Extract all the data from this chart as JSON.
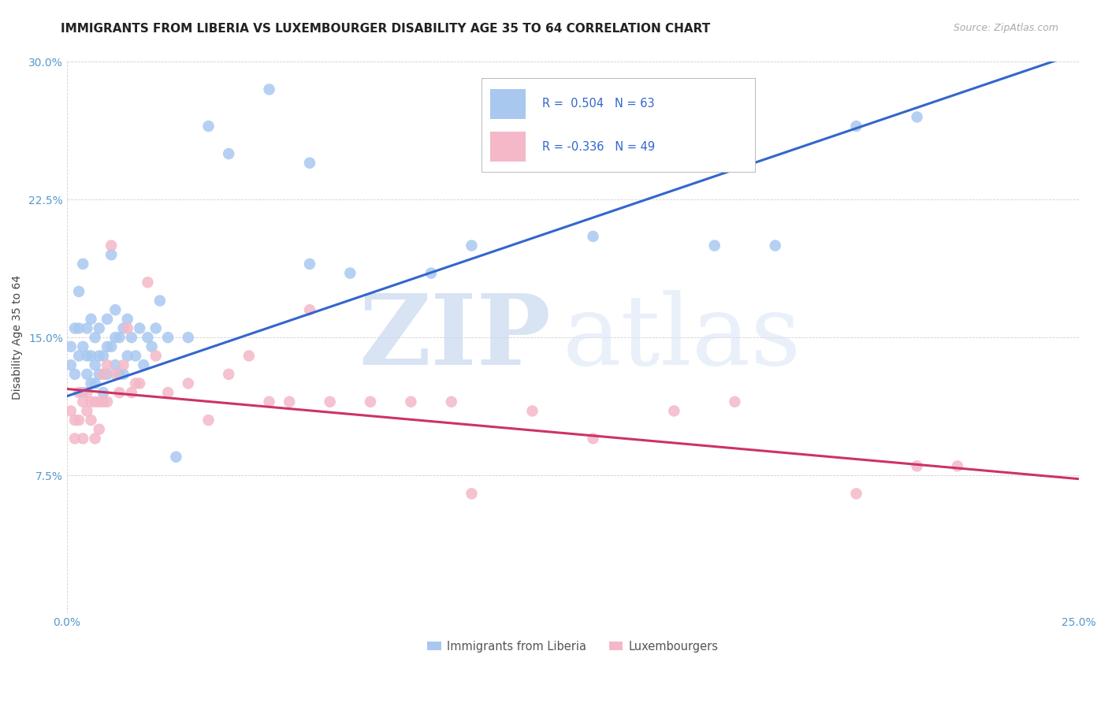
{
  "title": "IMMIGRANTS FROM LIBERIA VS LUXEMBOURGER DISABILITY AGE 35 TO 64 CORRELATION CHART",
  "source_text": "Source: ZipAtlas.com",
  "ylabel": "Disability Age 35 to 64",
  "xlim": [
    0.0,
    0.25
  ],
  "ylim": [
    0.0,
    0.3
  ],
  "ytick_labels": [
    "7.5%",
    "15.0%",
    "22.5%",
    "30.0%"
  ],
  "ytick_values": [
    0.075,
    0.15,
    0.225,
    0.3
  ],
  "xtick_values": [
    0.0,
    0.25
  ],
  "xtick_labels": [
    "0.0%",
    "25.0%"
  ],
  "grid_color": "#d0d0d0",
  "background_color": "#ffffff",
  "blue_color": "#a8c8f0",
  "pink_color": "#f4b8c8",
  "blue_line_color": "#3366cc",
  "pink_line_color": "#cc3366",
  "blue_line_x0": 0.0,
  "blue_line_y0": 0.118,
  "blue_line_x1": 0.25,
  "blue_line_y1": 0.305,
  "pink_line_x0": 0.0,
  "pink_line_y0": 0.122,
  "pink_line_x1": 0.25,
  "pink_line_y1": 0.073,
  "legend_text_blue": "R =  0.504   N = 63",
  "legend_text_pink": "R = -0.336   N = 49",
  "legend_label_blue": "Immigrants from Liberia",
  "legend_label_pink": "Luxembourgers",
  "title_fontsize": 11,
  "axis_fontsize": 10,
  "tick_fontsize": 10,
  "blue_scatter_x": [
    0.001,
    0.001,
    0.002,
    0.002,
    0.003,
    0.003,
    0.003,
    0.004,
    0.004,
    0.004,
    0.005,
    0.005,
    0.005,
    0.006,
    0.006,
    0.006,
    0.007,
    0.007,
    0.007,
    0.008,
    0.008,
    0.008,
    0.009,
    0.009,
    0.009,
    0.01,
    0.01,
    0.01,
    0.011,
    0.011,
    0.012,
    0.012,
    0.012,
    0.013,
    0.013,
    0.014,
    0.014,
    0.015,
    0.015,
    0.016,
    0.017,
    0.018,
    0.019,
    0.02,
    0.021,
    0.022,
    0.023,
    0.025,
    0.027,
    0.03,
    0.035,
    0.04,
    0.05,
    0.06,
    0.07,
    0.09,
    0.1,
    0.13,
    0.16,
    0.175,
    0.195,
    0.21,
    0.06
  ],
  "blue_scatter_y": [
    0.135,
    0.145,
    0.13,
    0.155,
    0.14,
    0.155,
    0.175,
    0.12,
    0.145,
    0.19,
    0.13,
    0.14,
    0.155,
    0.125,
    0.14,
    0.16,
    0.125,
    0.135,
    0.15,
    0.13,
    0.14,
    0.155,
    0.12,
    0.13,
    0.14,
    0.13,
    0.145,
    0.16,
    0.145,
    0.195,
    0.135,
    0.15,
    0.165,
    0.13,
    0.15,
    0.13,
    0.155,
    0.14,
    0.16,
    0.15,
    0.14,
    0.155,
    0.135,
    0.15,
    0.145,
    0.155,
    0.17,
    0.15,
    0.085,
    0.15,
    0.265,
    0.25,
    0.285,
    0.245,
    0.185,
    0.185,
    0.2,
    0.205,
    0.2,
    0.2,
    0.265,
    0.27,
    0.19
  ],
  "pink_scatter_x": [
    0.001,
    0.002,
    0.002,
    0.003,
    0.003,
    0.004,
    0.004,
    0.005,
    0.005,
    0.006,
    0.006,
    0.007,
    0.007,
    0.008,
    0.008,
    0.009,
    0.009,
    0.01,
    0.01,
    0.011,
    0.012,
    0.013,
    0.014,
    0.015,
    0.016,
    0.017,
    0.018,
    0.02,
    0.022,
    0.025,
    0.03,
    0.035,
    0.04,
    0.045,
    0.05,
    0.055,
    0.06,
    0.065,
    0.075,
    0.085,
    0.095,
    0.1,
    0.115,
    0.13,
    0.15,
    0.165,
    0.195,
    0.21,
    0.22
  ],
  "pink_scatter_y": [
    0.11,
    0.095,
    0.105,
    0.105,
    0.12,
    0.095,
    0.115,
    0.11,
    0.12,
    0.105,
    0.115,
    0.095,
    0.115,
    0.1,
    0.115,
    0.115,
    0.13,
    0.115,
    0.135,
    0.2,
    0.13,
    0.12,
    0.135,
    0.155,
    0.12,
    0.125,
    0.125,
    0.18,
    0.14,
    0.12,
    0.125,
    0.105,
    0.13,
    0.14,
    0.115,
    0.115,
    0.165,
    0.115,
    0.115,
    0.115,
    0.115,
    0.065,
    0.11,
    0.095,
    0.11,
    0.115,
    0.065,
    0.08,
    0.08
  ]
}
